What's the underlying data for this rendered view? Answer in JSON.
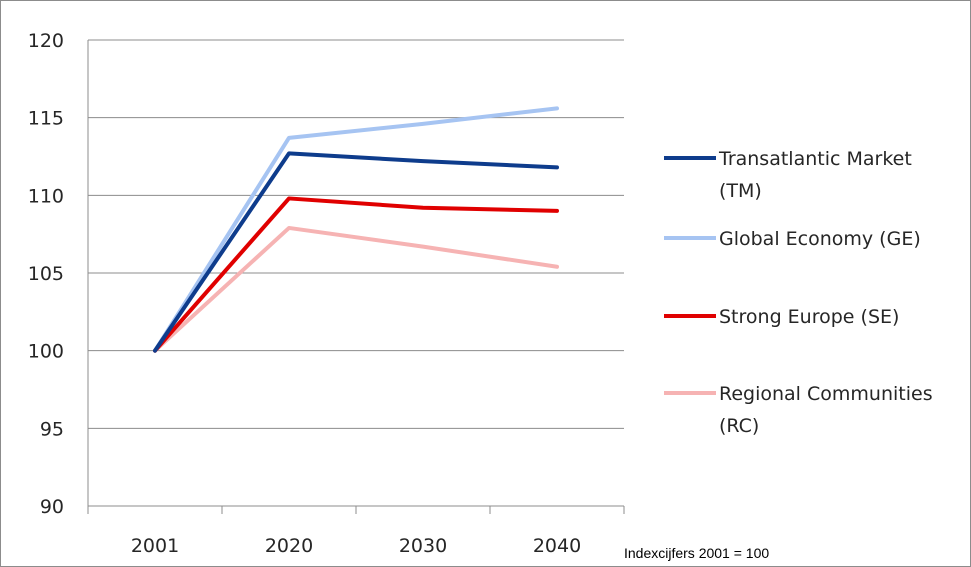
{
  "chart_data": {
    "type": "line",
    "categories": [
      "2001",
      "2020",
      "2030",
      "2040"
    ],
    "ylim": [
      90,
      120
    ],
    "yticks": [
      90,
      95,
      100,
      105,
      110,
      115,
      120
    ],
    "grid": true,
    "legend_position": "right",
    "series": [
      {
        "name": "Transatlantic Market (TM)",
        "name_lines": [
          "Transatlantic Market",
          "(TM)"
        ],
        "color": "#0e3c8c",
        "values": [
          100,
          112.7,
          112.2,
          111.8
        ]
      },
      {
        "name": "Global Economy (GE)",
        "name_lines": [
          "Global Economy (GE)"
        ],
        "color": "#a6c4f2",
        "values": [
          100,
          113.7,
          114.6,
          115.6
        ]
      },
      {
        "name": "Strong Europe (SE)",
        "name_lines": [
          "Strong Europe (SE)"
        ],
        "color": "#e00000",
        "values": [
          100,
          109.8,
          109.2,
          109.0
        ]
      },
      {
        "name": "Regional Communities (RC)",
        "name_lines": [
          "Regional Communities",
          "(RC)"
        ],
        "color": "#f6b3b3",
        "values": [
          100,
          107.9,
          106.7,
          105.4
        ]
      }
    ],
    "annotation": "Indexcijfers 2001 = 100"
  }
}
